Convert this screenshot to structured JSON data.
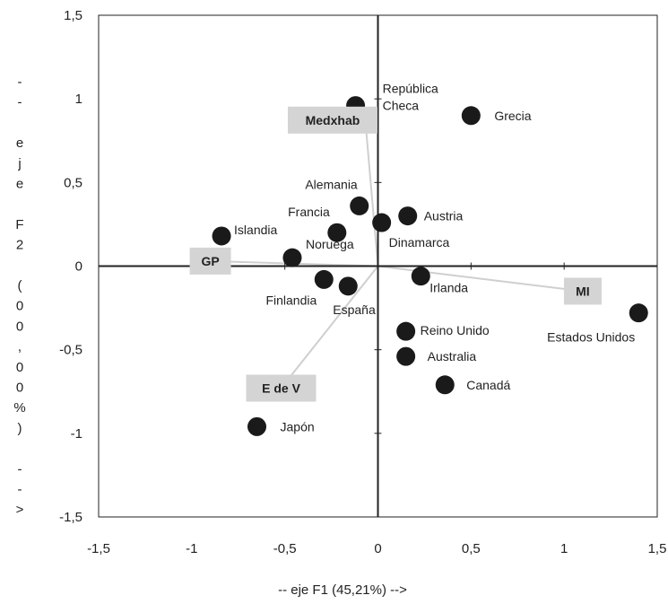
{
  "chart_data": {
    "type": "scatter",
    "xlabel": "-- eje F1 (45,21%) -->",
    "ylabel": "-- eje F2 (00,00%) -->",
    "xlim": [
      -1.5,
      1.5
    ],
    "ylim": [
      -1.5,
      1.5
    ],
    "xticks": [
      "-1,5",
      "-1",
      "-0,5",
      "0",
      "0,5",
      "1",
      "1,5"
    ],
    "yticks": [
      "1,5",
      "1",
      "0,5",
      "0",
      "-0,5",
      "-1",
      "-1,5"
    ],
    "grid": false,
    "points": [
      {
        "label": "República\nCheca",
        "x": -0.12,
        "y": 0.96
      },
      {
        "label": "Grecia",
        "x": 0.5,
        "y": 0.9
      },
      {
        "label": "Alemania",
        "x": -0.1,
        "y": 0.36
      },
      {
        "label": "Austria",
        "x": 0.16,
        "y": 0.3
      },
      {
        "label": "Francia",
        "x": -0.22,
        "y": 0.2
      },
      {
        "label": "Dinamarca",
        "x": 0.02,
        "y": 0.26
      },
      {
        "label": "Islandia",
        "x": -0.84,
        "y": 0.18
      },
      {
        "label": "Noruega",
        "x": -0.46,
        "y": 0.05
      },
      {
        "label": "Finlandia",
        "x": -0.29,
        "y": -0.08
      },
      {
        "label": "España",
        "x": -0.16,
        "y": -0.12
      },
      {
        "label": "Irlanda",
        "x": 0.23,
        "y": -0.06
      },
      {
        "label": "Reino Unido",
        "x": 0.15,
        "y": -0.39
      },
      {
        "label": "Australia",
        "x": 0.15,
        "y": -0.54
      },
      {
        "label": "Canadá",
        "x": 0.36,
        "y": -0.71
      },
      {
        "label": "Estados Unidos",
        "x": 1.4,
        "y": -0.28
      },
      {
        "label": "Japón",
        "x": -0.65,
        "y": -0.96
      }
    ],
    "variables": [
      {
        "label": "Medxhab",
        "x": -0.07,
        "y": 0.9
      },
      {
        "label": "GP",
        "x": -0.9,
        "y": 0.03
      },
      {
        "label": "MI",
        "x": 1.1,
        "y": -0.15
      },
      {
        "label": "E de V",
        "x": -0.52,
        "y": -0.73
      }
    ],
    "colors": {
      "point": "#1a1a1a",
      "vector": "#cfcfcf",
      "label_box": "#d4d4d4",
      "axis": "#222222"
    }
  }
}
